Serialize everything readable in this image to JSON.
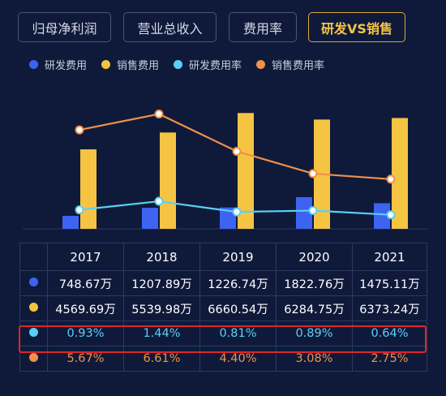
{
  "tabs": [
    {
      "label": "归母净利润",
      "active": false
    },
    {
      "label": "营业总收入",
      "active": false
    },
    {
      "label": "费用率",
      "active": false
    },
    {
      "label": "研发VS销售",
      "active": true
    }
  ],
  "colors": {
    "rd_expense": "#3d63f0",
    "sales_expense": "#f5c443",
    "rd_rate": "#5ad0f5",
    "sales_rate": "#f0904a",
    "highlight_border": "#e0242a"
  },
  "chart_data": {
    "type": "bar",
    "categories": [
      "2017",
      "2018",
      "2019",
      "2020",
      "2021"
    ],
    "legend_position": "top-left",
    "grid": false,
    "series": [
      {
        "name": "研发费用",
        "kind": "bar",
        "axis": "amount",
        "values": [
          748.67,
          1207.89,
          1226.74,
          1822.76,
          1475.11
        ],
        "labels": [
          "748.67万",
          "1207.89万",
          "1226.74万",
          "1822.76万",
          "1475.11万"
        ]
      },
      {
        "name": "销售费用",
        "kind": "bar",
        "axis": "amount",
        "values": [
          4569.69,
          5539.98,
          6660.54,
          6284.75,
          6373.24
        ],
        "labels": [
          "4569.69万",
          "5539.98万",
          "6660.54万",
          "6284.75万",
          "6373.24万"
        ]
      },
      {
        "name": "研发费用率",
        "kind": "line",
        "axis": "rate",
        "values": [
          0.93,
          1.44,
          0.81,
          0.89,
          0.64
        ],
        "labels": [
          "0.93%",
          "1.44%",
          "0.81%",
          "0.89%",
          "0.64%"
        ]
      },
      {
        "name": "销售费用率",
        "kind": "line",
        "axis": "rate",
        "values": [
          5.67,
          6.61,
          4.4,
          3.08,
          2.75
        ],
        "labels": [
          "5.67%",
          "6.61%",
          "4.40%",
          "3.08%",
          "2.75%"
        ]
      }
    ],
    "amount_ylim": [
      0,
      7000
    ],
    "rate_ylim": [
      0,
      7.5
    ],
    "highlighted_series": "研发费用率"
  }
}
